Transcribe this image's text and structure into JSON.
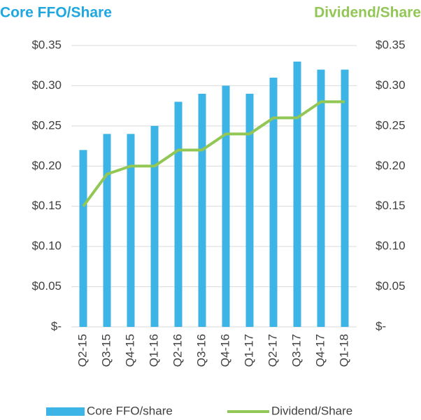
{
  "chart_data": {
    "type": "bar_line",
    "y_title": "Core FFO/Share",
    "y2_title": "Dividend/Share",
    "categories": [
      "Q2-15",
      "Q3-15",
      "Q4-15",
      "Q1-16",
      "Q2-16",
      "Q3-16",
      "Q4-16",
      "Q1-17",
      "Q2-17",
      "Q3-17",
      "Q4-17",
      "Q1-18"
    ],
    "series": [
      {
        "name": "Core FFO/share",
        "type": "bar",
        "color": "#3cb4e5",
        "values": [
          0.22,
          0.24,
          0.24,
          0.25,
          0.28,
          0.29,
          0.3,
          0.29,
          0.31,
          0.33,
          0.32,
          0.32
        ]
      },
      {
        "name": "Dividend/Share",
        "type": "line",
        "axis": "y2",
        "color": "#92c756",
        "values": [
          0.15,
          0.19,
          0.2,
          0.2,
          0.22,
          0.22,
          0.24,
          0.24,
          0.26,
          0.26,
          0.28,
          0.28
        ]
      }
    ],
    "ylim": [
      0,
      0.35
    ],
    "yticks": [
      {
        "value": 0,
        "label": "$-"
      },
      {
        "value": 0.05,
        "label": "$0.05"
      },
      {
        "value": 0.1,
        "label": "$0.10"
      },
      {
        "value": 0.15,
        "label": "$0.15"
      },
      {
        "value": 0.2,
        "label": "$0.20"
      },
      {
        "value": 0.25,
        "label": "$0.25"
      },
      {
        "value": 0.3,
        "label": "$0.30"
      },
      {
        "value": 0.35,
        "label": "$0.35"
      }
    ],
    "y2lim": [
      0,
      0.35
    ],
    "y2ticks": [
      {
        "value": 0,
        "label": "$-"
      },
      {
        "value": 0.05,
        "label": "$0.05"
      },
      {
        "value": 0.1,
        "label": "$0.10"
      },
      {
        "value": 0.15,
        "label": "$0.15"
      },
      {
        "value": 0.2,
        "label": "$0.20"
      },
      {
        "value": 0.25,
        "label": "$0.25"
      },
      {
        "value": 0.3,
        "label": "$0.30"
      },
      {
        "value": 0.35,
        "label": "$0.35"
      }
    ],
    "grid": true
  }
}
